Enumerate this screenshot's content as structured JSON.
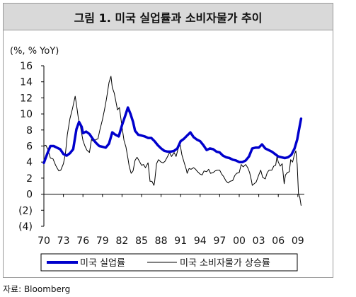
{
  "chart_data": {
    "type": "line",
    "title": "그림 1. 미국 실업률과 소비자물가 추이",
    "unit_label": "(%, % YoY)",
    "ylim": [
      -4,
      16
    ],
    "y_ticks": [
      "16",
      "14",
      "12",
      "10",
      "8",
      "6",
      "4",
      "2",
      "0",
      "(2)",
      "(4)"
    ],
    "y_tick_values": [
      16,
      14,
      12,
      10,
      8,
      6,
      4,
      2,
      0,
      -2,
      -4
    ],
    "xlim": [
      1970,
      2010
    ],
    "x_ticks": [
      "70",
      "73",
      "76",
      "79",
      "82",
      "85",
      "88",
      "91",
      "94",
      "97",
      "00",
      "03",
      "06",
      "09"
    ],
    "x_tick_values": [
      1970,
      1973,
      1976,
      1979,
      1982,
      1985,
      1988,
      1991,
      1994,
      1997,
      2000,
      2003,
      2006,
      2009
    ],
    "grid": false,
    "legend": "bottom",
    "series": [
      {
        "name": "미국 실업률",
        "color": "#0000cc",
        "style": "thick",
        "points": [
          [
            1970,
            3.9
          ],
          [
            1970.5,
            5.0
          ],
          [
            1971,
            6.0
          ],
          [
            1971.5,
            6.0
          ],
          [
            1972,
            5.8
          ],
          [
            1972.5,
            5.6
          ],
          [
            1973,
            5.0
          ],
          [
            1973.5,
            4.8
          ],
          [
            1974,
            5.1
          ],
          [
            1974.5,
            5.6
          ],
          [
            1975,
            8.1
          ],
          [
            1975.4,
            9.0
          ],
          [
            1975.8,
            8.4
          ],
          [
            1976,
            7.6
          ],
          [
            1976.5,
            7.8
          ],
          [
            1977,
            7.5
          ],
          [
            1977.5,
            6.9
          ],
          [
            1978,
            6.4
          ],
          [
            1978.5,
            6.0
          ],
          [
            1979,
            5.9
          ],
          [
            1979.5,
            5.8
          ],
          [
            1980,
            6.3
          ],
          [
            1980.5,
            7.7
          ],
          [
            1981,
            7.4
          ],
          [
            1981.5,
            7.2
          ],
          [
            1982,
            8.6
          ],
          [
            1982.5,
            9.8
          ],
          [
            1982.9,
            10.8
          ],
          [
            1983.3,
            10.0
          ],
          [
            1983.7,
            9.0
          ],
          [
            1984,
            7.9
          ],
          [
            1984.5,
            7.4
          ],
          [
            1985,
            7.3
          ],
          [
            1985.5,
            7.2
          ],
          [
            1986,
            7.0
          ],
          [
            1986.5,
            7.0
          ],
          [
            1987,
            6.6
          ],
          [
            1987.5,
            6.1
          ],
          [
            1988,
            5.7
          ],
          [
            1988.5,
            5.4
          ],
          [
            1989,
            5.3
          ],
          [
            1989.5,
            5.3
          ],
          [
            1990,
            5.4
          ],
          [
            1990.5,
            5.7
          ],
          [
            1991,
            6.6
          ],
          [
            1991.5,
            6.9
          ],
          [
            1992,
            7.3
          ],
          [
            1992.5,
            7.7
          ],
          [
            1993,
            7.1
          ],
          [
            1993.5,
            6.8
          ],
          [
            1994,
            6.6
          ],
          [
            1994.5,
            6.1
          ],
          [
            1995,
            5.5
          ],
          [
            1995.5,
            5.7
          ],
          [
            1996,
            5.6
          ],
          [
            1996.5,
            5.3
          ],
          [
            1997,
            5.2
          ],
          [
            1997.5,
            4.8
          ],
          [
            1998,
            4.6
          ],
          [
            1998.5,
            4.5
          ],
          [
            1999,
            4.3
          ],
          [
            1999.5,
            4.2
          ],
          [
            2000,
            4.0
          ],
          [
            2000.5,
            4.0
          ],
          [
            2001,
            4.2
          ],
          [
            2001.5,
            4.7
          ],
          [
            2002,
            5.7
          ],
          [
            2002.5,
            5.8
          ],
          [
            2003,
            5.8
          ],
          [
            2003.5,
            6.2
          ],
          [
            2004,
            5.7
          ],
          [
            2004.5,
            5.5
          ],
          [
            2005,
            5.3
          ],
          [
            2005.5,
            5.0
          ],
          [
            2006,
            4.7
          ],
          [
            2006.5,
            4.6
          ],
          [
            2007,
            4.5
          ],
          [
            2007.5,
            4.6
          ],
          [
            2008,
            4.9
          ],
          [
            2008.5,
            5.7
          ],
          [
            2008.9,
            6.8
          ],
          [
            2009.2,
            8.1
          ],
          [
            2009.5,
            9.4
          ]
        ]
      },
      {
        "name": "미국 소비자물가 상승률",
        "color": "#000000",
        "style": "thin",
        "points": [
          [
            1970,
            6.0
          ],
          [
            1970.3,
            6.1
          ],
          [
            1970.6,
            5.6
          ],
          [
            1971,
            4.5
          ],
          [
            1971.4,
            4.4
          ],
          [
            1971.8,
            3.6
          ],
          [
            1972,
            3.3
          ],
          [
            1972.3,
            2.9
          ],
          [
            1972.6,
            3.0
          ],
          [
            1973,
            3.8
          ],
          [
            1973.3,
            5.0
          ],
          [
            1973.6,
            7.4
          ],
          [
            1974,
            9.4
          ],
          [
            1974.4,
            10.7
          ],
          [
            1974.8,
            12.2
          ],
          [
            1975,
            11.2
          ],
          [
            1975.3,
            9.4
          ],
          [
            1975.6,
            8.5
          ],
          [
            1976,
            6.7
          ],
          [
            1976.3,
            6.0
          ],
          [
            1976.6,
            5.5
          ],
          [
            1977,
            5.2
          ],
          [
            1977.3,
            6.8
          ],
          [
            1977.6,
            6.6
          ],
          [
            1978,
            6.8
          ],
          [
            1978.3,
            6.9
          ],
          [
            1978.6,
            8.0
          ],
          [
            1979,
            9.3
          ],
          [
            1979.3,
            10.5
          ],
          [
            1979.6,
            11.8
          ],
          [
            1980,
            13.9
          ],
          [
            1980.3,
            14.7
          ],
          [
            1980.5,
            13.3
          ],
          [
            1980.8,
            12.6
          ],
          [
            1981,
            11.8
          ],
          [
            1981.3,
            10.5
          ],
          [
            1981.6,
            10.8
          ],
          [
            1982,
            8.4
          ],
          [
            1982.3,
            6.7
          ],
          [
            1982.6,
            5.9
          ],
          [
            1982.9,
            4.5
          ],
          [
            1983.1,
            3.5
          ],
          [
            1983.4,
            2.6
          ],
          [
            1983.7,
            2.9
          ],
          [
            1984,
            4.2
          ],
          [
            1984.3,
            4.6
          ],
          [
            1984.6,
            4.2
          ],
          [
            1985,
            3.6
          ],
          [
            1985.3,
            3.7
          ],
          [
            1985.6,
            3.3
          ],
          [
            1986,
            3.9
          ],
          [
            1986.3,
            1.6
          ],
          [
            1986.6,
            1.6
          ],
          [
            1986.9,
            1.1
          ],
          [
            1987,
            1.5
          ],
          [
            1987.3,
            3.8
          ],
          [
            1987.6,
            4.3
          ],
          [
            1988,
            4.0
          ],
          [
            1988.3,
            3.9
          ],
          [
            1988.6,
            4.1
          ],
          [
            1989,
            4.7
          ],
          [
            1989.3,
            5.2
          ],
          [
            1989.6,
            4.7
          ],
          [
            1990,
            5.2
          ],
          [
            1990.3,
            4.7
          ],
          [
            1990.6,
            5.6
          ],
          [
            1990.9,
            6.3
          ],
          [
            1991.2,
            4.9
          ],
          [
            1991.6,
            3.8
          ],
          [
            1991.9,
            3.0
          ],
          [
            1992,
            2.6
          ],
          [
            1992.3,
            3.2
          ],
          [
            1992.6,
            3.1
          ],
          [
            1993,
            3.3
          ],
          [
            1993.3,
            3.1
          ],
          [
            1993.6,
            2.8
          ],
          [
            1994,
            2.5
          ],
          [
            1994.3,
            2.4
          ],
          [
            1994.6,
            2.9
          ],
          [
            1995,
            2.8
          ],
          [
            1995.3,
            3.1
          ],
          [
            1995.6,
            2.6
          ],
          [
            1996,
            2.7
          ],
          [
            1996.3,
            2.9
          ],
          [
            1996.6,
            3.0
          ],
          [
            1997,
            3.0
          ],
          [
            1997.3,
            2.5
          ],
          [
            1997.6,
            2.2
          ],
          [
            1998,
            1.6
          ],
          [
            1998.3,
            1.4
          ],
          [
            1998.6,
            1.6
          ],
          [
            1999,
            1.7
          ],
          [
            1999.3,
            2.3
          ],
          [
            1999.6,
            2.6
          ],
          [
            2000,
            2.7
          ],
          [
            2000.3,
            3.7
          ],
          [
            2000.6,
            3.4
          ],
          [
            2001,
            3.7
          ],
          [
            2001.3,
            3.3
          ],
          [
            2001.6,
            2.7
          ],
          [
            2001.9,
            1.6
          ],
          [
            2002,
            1.1
          ],
          [
            2002.3,
            1.3
          ],
          [
            2002.6,
            1.5
          ],
          [
            2003,
            2.4
          ],
          [
            2003.3,
            3.0
          ],
          [
            2003.6,
            2.1
          ],
          [
            2004,
            1.9
          ],
          [
            2004.3,
            2.7
          ],
          [
            2004.6,
            3.0
          ],
          [
            2005,
            3.0
          ],
          [
            2005.3,
            3.5
          ],
          [
            2005.6,
            3.6
          ],
          [
            2005.8,
            4.7
          ],
          [
            2006,
            4.0
          ],
          [
            2006.3,
            3.5
          ],
          [
            2006.6,
            3.8
          ],
          [
            2006.9,
            1.3
          ],
          [
            2007.1,
            2.4
          ],
          [
            2007.4,
            2.7
          ],
          [
            2007.7,
            2.8
          ],
          [
            2007.9,
            4.3
          ],
          [
            2008.2,
            4.0
          ],
          [
            2008.5,
            5.0
          ],
          [
            2008.7,
            5.4
          ],
          [
            2008.9,
            3.7
          ],
          [
            2009.1,
            0.1
          ],
          [
            2009.3,
            -0.4
          ],
          [
            2009.5,
            -1.4
          ]
        ]
      }
    ]
  }
}
